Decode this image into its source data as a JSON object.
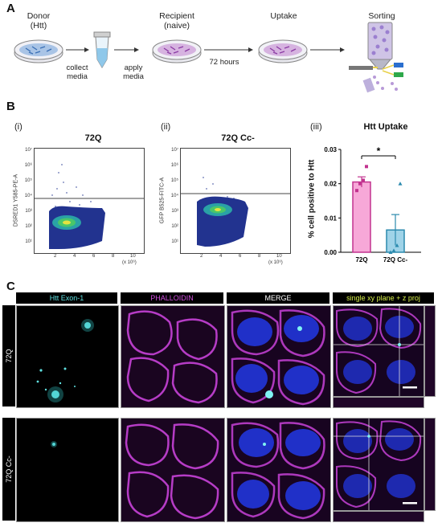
{
  "panels": {
    "A": "A",
    "B": "B",
    "C": "C"
  },
  "workflow": {
    "steps": [
      {
        "line1": "Donor",
        "line2": "(Htt)"
      },
      {
        "line1": "Recipient",
        "line2": "(naive)"
      },
      {
        "line1": "Uptake",
        "line2": ""
      },
      {
        "line1": "Sorting",
        "line2": ""
      }
    ],
    "arrows": [
      {
        "line1": "collect",
        "line2": "media"
      },
      {
        "line1": "apply",
        "line2": "media"
      },
      {
        "line1": "72 hours",
        "line2": ""
      }
    ]
  },
  "flow": {
    "sublabels": [
      "(i)",
      "(ii)",
      "(iii)"
    ],
    "plots": [
      {
        "title": "72Q",
        "ylabel": "DSRED1 Y585-PE-A"
      },
      {
        "title": "72Q Cc-",
        "ylabel": "GFP B525-FITC-A"
      }
    ],
    "yticks": [
      "10⁷",
      "10⁶",
      "10⁵",
      "10⁴",
      "10³",
      "10²",
      "10¹"
    ],
    "xticks": [
      "2",
      "4",
      "6",
      "8",
      "10"
    ],
    "xunit": "(x 10⁶)"
  },
  "chart_data": {
    "type": "bar",
    "title": "Htt Uptake",
    "ylabel": "% cell positive to Htt",
    "categories": [
      "72Q",
      "72Q Cc-"
    ],
    "values": [
      0.0205,
      0.0065
    ],
    "errors": [
      0.0015,
      0.0045
    ],
    "points": [
      [
        0.018,
        0.02,
        0.021,
        0.025
      ],
      [
        0.0,
        0.0005,
        0.002,
        0.02
      ]
    ],
    "ylim": [
      0,
      0.03
    ],
    "yticks": [
      "0.00",
      "0.01",
      "0.02",
      "0.03"
    ],
    "significance": "*",
    "colors": {
      "72Q": "#f7a8d8",
      "72Q Cc-": "#9fd3e8",
      "72Q_edge": "#c2338f",
      "Cc_edge": "#2b8aae"
    }
  },
  "microscopy": {
    "columns": [
      "Htt Exon-1",
      "PHALLOIDIN",
      "MERGE",
      "single xy plane + z proj"
    ],
    "rows": [
      "72Q",
      "72Q Cc-"
    ],
    "column_colors": [
      "#5fe0e0",
      "#d24fe0",
      "#ffffff",
      "#d8f04a"
    ]
  }
}
